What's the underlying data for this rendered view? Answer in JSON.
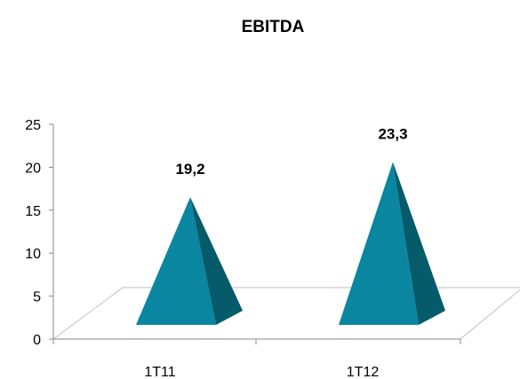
{
  "chart_data": {
    "type": "bar",
    "shape": "pyramid-3d",
    "title": "EBITDA",
    "xlabel": "",
    "ylabel": "",
    "categories": [
      "1T11",
      "1T12"
    ],
    "values": [
      19.2,
      23.3
    ],
    "data_labels": [
      "19,2",
      "23,3"
    ],
    "ylim": [
      0,
      25
    ],
    "yticks": [
      "0",
      "5",
      "10",
      "15",
      "20",
      "25"
    ],
    "grid": false,
    "legend": "none",
    "colors": {
      "front": "#0a86a1",
      "side": "#055b6a",
      "floor_edge": "#bfbfbf",
      "axis": "#888888"
    }
  }
}
